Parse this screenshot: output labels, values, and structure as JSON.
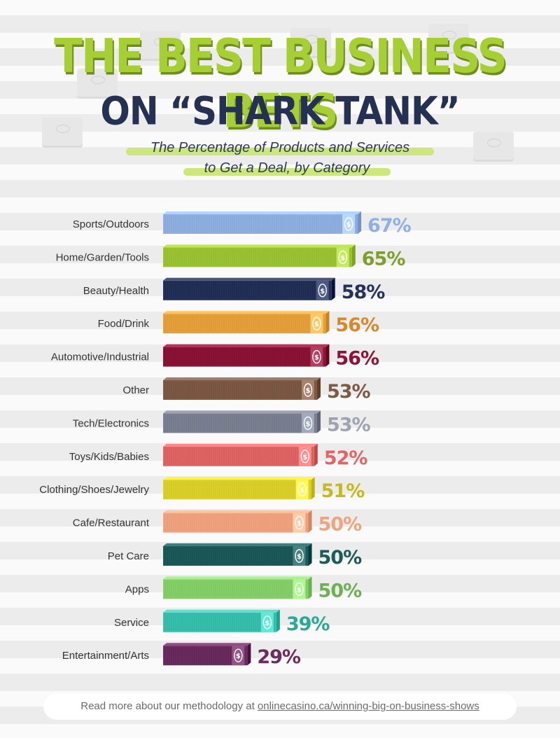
{
  "header": {
    "title_line1": "THE BEST BUSINESS BETS",
    "title_line2": "ON “SHARK TANK”",
    "subtitle_line1": "The Percentage of Products and Services",
    "subtitle_line2": "to Get a Deal, by Category"
  },
  "chart_data": {
    "type": "bar",
    "orientation": "horizontal",
    "categories": [
      "Sports/Outdoors",
      "Home/Garden/Tools",
      "Beauty/Health",
      "Food/Drink",
      "Automotive/Industrial",
      "Other",
      "Tech/Electronics",
      "Toys/Kids/Babies",
      "Clothing/Shoes/Jewelry",
      "Cafe/Restaurant",
      "Pet Care",
      "Apps",
      "Service",
      "Entertainment/Arts"
    ],
    "values": [
      67,
      65,
      58,
      56,
      56,
      53,
      53,
      52,
      51,
      50,
      50,
      50,
      39,
      29
    ],
    "value_labels": [
      "67%",
      "65%",
      "58%",
      "56%",
      "56%",
      "53%",
      "53%",
      "52%",
      "51%",
      "50%",
      "50%",
      "50%",
      "39%",
      "29%"
    ],
    "colors": [
      "#8fb0e0",
      "#9bc334",
      "#253158",
      "#e6a03c",
      "#8a1538",
      "#7d5a45",
      "#7b8192",
      "#e06666",
      "#dcd02c",
      "#f0a37f",
      "#1f5a5a",
      "#86cf6a",
      "#38c0ac",
      "#6b2c5e"
    ],
    "label_colors": [
      "#8fb0e0",
      "#7f9e2c",
      "#253158",
      "#d4892c",
      "#8a1538",
      "#7d5a45",
      "#9ea3b0",
      "#e06666",
      "#c6b91e",
      "#f0a37f",
      "#1f5a5a",
      "#6db055",
      "#2ba896",
      "#6b2c5e"
    ],
    "icon": "dollar-money-stack"
  },
  "footer": {
    "text": "Read more about our methodology at ",
    "link": "onlinecasino.ca/winning-big-on-business-shows"
  }
}
